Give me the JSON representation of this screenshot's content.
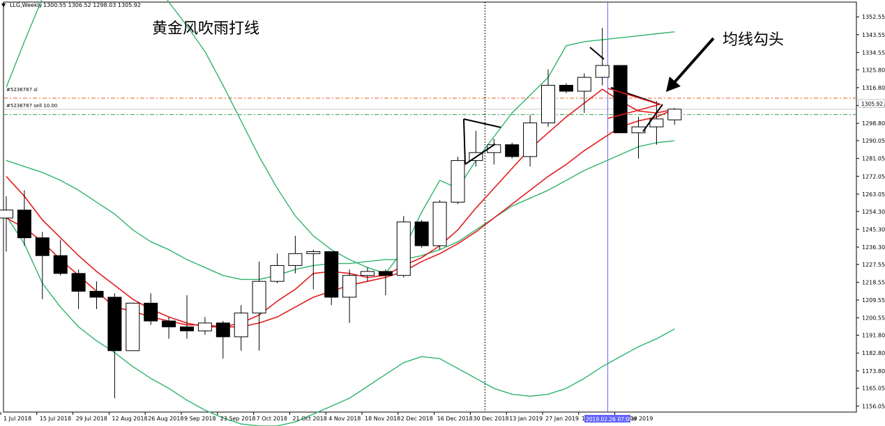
{
  "header": {
    "symbol_label": "LLG,Weekly",
    "ohlc_label": "1300.55 1306.52 1298.03 1305.92"
  },
  "annotations": {
    "title_cn": "黄金风吹雨打线",
    "arrow_label_cn": "均线勾头"
  },
  "orders": {
    "sl_label": "#5236787 sl",
    "sell_label": "#5236787 sell 10.00"
  },
  "price_scale": {
    "tick_labels": [
      "1352.55",
      "1343.55",
      "1334.55",
      "1325.80",
      "1316.80",
      "1307.80",
      "1298.80",
      "1290.05",
      "1281.05",
      "1272.05",
      "1263.05",
      "1254.30",
      "1245.30",
      "1236.30",
      "1227.55",
      "1218.55",
      "1209.55",
      "1200.55",
      "1191.80",
      "1182.80",
      "1173.80",
      "1165.05",
      "1156.05"
    ],
    "current_price_label": "1305.92"
  },
  "time_scale": {
    "labels": [
      "1 Jul 2018",
      "15 Jul 2018",
      "29 Jul 2018",
      "12 Aug 2018",
      "26 Aug 2018",
      "9 Sep 2018",
      "23 Sep 2018",
      "7 Oct 2018",
      "21 Oct 2018",
      "4 Nov 2018",
      "18 Nov 2018",
      "2 Dec 2018",
      "16 Dec 2018",
      "30 Dec 2018",
      "13 Jan 2019",
      "27 Jan 2019",
      "10 Fe",
      "10 Mar 2019"
    ],
    "crosshair_label": "2019.02.26 07:00",
    "crosshair_suffix": "19"
  },
  "colors": {
    "ma": "#e31b1b",
    "bollinger": "#2fb36a",
    "sl_line": "#e85a1a",
    "sell_line": "#2e9e3e",
    "crosshair": "#6464ff",
    "candle_bear": "#000000",
    "candle_bull": "#ffffff"
  },
  "chart_data": {
    "type": "candlestick",
    "timeframe": "Weekly",
    "ylim": [
      1153,
      1360
    ],
    "candles": [
      {
        "o": 1251.0,
        "h": 1262.0,
        "l": 1234.0,
        "c": 1255.0
      },
      {
        "o": 1255.0,
        "h": 1265.0,
        "l": 1237.0,
        "c": 1241.0
      },
      {
        "o": 1241.0,
        "h": 1244.0,
        "l": 1210.0,
        "c": 1232.0
      },
      {
        "o": 1232.0,
        "h": 1240.0,
        "l": 1222.0,
        "c": 1223.0
      },
      {
        "o": 1223.0,
        "h": 1225.0,
        "l": 1205.0,
        "c": 1214.0
      },
      {
        "o": 1214.0,
        "h": 1219.0,
        "l": 1205.0,
        "c": 1211.0
      },
      {
        "o": 1211.0,
        "h": 1213.0,
        "l": 1160.0,
        "c": 1184.0
      },
      {
        "o": 1184.0,
        "h": 1208.0,
        "l": 1184.0,
        "c": 1208.0
      },
      {
        "o": 1208.0,
        "h": 1213.0,
        "l": 1197.0,
        "c": 1199.0
      },
      {
        "o": 1199.0,
        "h": 1201.0,
        "l": 1190.0,
        "c": 1196.0
      },
      {
        "o": 1196.0,
        "h": 1212.0,
        "l": 1190.0,
        "c": 1194.0
      },
      {
        "o": 1194.0,
        "h": 1201.0,
        "l": 1192.0,
        "c": 1198.0
      },
      {
        "o": 1198.0,
        "h": 1199.0,
        "l": 1180.0,
        "c": 1191.0
      },
      {
        "o": 1191.0,
        "h": 1207.0,
        "l": 1184.0,
        "c": 1203.0
      },
      {
        "o": 1203.0,
        "h": 1229.0,
        "l": 1184.0,
        "c": 1219.0
      },
      {
        "o": 1219.0,
        "h": 1233.0,
        "l": 1218.0,
        "c": 1227.0
      },
      {
        "o": 1227.0,
        "h": 1242.0,
        "l": 1223.0,
        "c": 1233.0
      },
      {
        "o": 1233.0,
        "h": 1235.0,
        "l": 1215.0,
        "c": 1234.0
      },
      {
        "o": 1234.0,
        "h": 1234.0,
        "l": 1207.0,
        "c": 1211.0
      },
      {
        "o": 1211.0,
        "h": 1225.0,
        "l": 1198.0,
        "c": 1222.0
      },
      {
        "o": 1222.0,
        "h": 1226.0,
        "l": 1219.0,
        "c": 1224.0
      },
      {
        "o": 1224.0,
        "h": 1225.0,
        "l": 1212.0,
        "c": 1222.0
      },
      {
        "o": 1222.0,
        "h": 1252.0,
        "l": 1221.0,
        "c": 1249.0
      },
      {
        "o": 1249.0,
        "h": 1250.0,
        "l": 1236.0,
        "c": 1237.0
      },
      {
        "o": 1237.0,
        "h": 1260.0,
        "l": 1235.0,
        "c": 1259.0
      },
      {
        "o": 1259.0,
        "h": 1282.0,
        "l": 1258.0,
        "c": 1280.0
      },
      {
        "o": 1280.0,
        "h": 1295.0,
        "l": 1277.0,
        "c": 1284.0
      },
      {
        "o": 1284.0,
        "h": 1291.0,
        "l": 1278.0,
        "c": 1288.0
      },
      {
        "o": 1288.0,
        "h": 1289.0,
        "l": 1281.0,
        "c": 1282.0
      },
      {
        "o": 1282.0,
        "h": 1303.0,
        "l": 1277.0,
        "c": 1299.0
      },
      {
        "o": 1299.0,
        "h": 1326.0,
        "l": 1297.0,
        "c": 1318.0
      },
      {
        "o": 1318.0,
        "h": 1319.0,
        "l": 1314.0,
        "c": 1315.0
      },
      {
        "o": 1315.0,
        "h": 1324.0,
        "l": 1304.0,
        "c": 1322.0
      },
      {
        "o": 1322.0,
        "h": 1347.0,
        "l": 1318.0,
        "c": 1328.0
      },
      {
        "o": 1328.0,
        "h": 1328.0,
        "l": 1294.0,
        "c": 1294.0
      },
      {
        "o": 1294.0,
        "h": 1302.0,
        "l": 1281.0,
        "c": 1297.0
      },
      {
        "o": 1297.0,
        "h": 1310.0,
        "l": 1288.0,
        "c": 1301.0
      },
      {
        "o": 1300.55,
        "h": 1306.52,
        "l": 1298.03,
        "c": 1305.92
      }
    ],
    "ma_fast": [
      1251,
      1246,
      1239,
      1230,
      1222,
      1214,
      1206,
      1204,
      1201,
      1199,
      1197,
      1197,
      1196,
      1198,
      1202,
      1209,
      1215,
      1223,
      1224,
      1223,
      1221,
      1222,
      1227,
      1231,
      1237,
      1245,
      1256,
      1266,
      1276,
      1286,
      1294,
      1302,
      1309,
      1316,
      1310,
      1305,
      1304,
      1305.9
    ],
    "ma_slow": [
      1272,
      1262,
      1250,
      1241,
      1232,
      1224,
      1217,
      1210,
      1205,
      1201,
      1198,
      1196,
      1196,
      1196,
      1198,
      1201,
      1206,
      1211,
      1214,
      1217,
      1219,
      1221,
      1224,
      1229,
      1233,
      1238,
      1244,
      1251,
      1258,
      1265,
      1272,
      1278,
      1285,
      1291,
      1297,
      1300,
      1302,
      1305.9
    ],
    "bb_upper": [
      1317,
      1340,
      1362,
      1372,
      1380,
      1388,
      1393,
      1385,
      1373,
      1360,
      1348,
      1335,
      1318,
      1300,
      1282,
      1266,
      1252,
      1242,
      1235,
      1230,
      1226,
      1223,
      1235,
      1254,
      1270,
      1266,
      1280,
      1292,
      1304,
      1313,
      1322,
      1338,
      1340,
      1341,
      1342,
      1343,
      1344,
      1345
    ],
    "bb_middle": [
      1280,
      1277,
      1274,
      1270,
      1265,
      1259,
      1253,
      1245,
      1239,
      1235,
      1230,
      1226,
      1222,
      1220,
      1220,
      1222,
      1225,
      1227,
      1228,
      1228,
      1229,
      1230,
      1230,
      1232,
      1235,
      1239,
      1245,
      1251,
      1257,
      1261,
      1265,
      1270,
      1275,
      1279,
      1283,
      1287,
      1289,
      1290
    ],
    "bb_lower": [
      1252,
      1238,
      1218,
      1206,
      1196,
      1189,
      1183,
      1176,
      1170,
      1165,
      1159,
      1154,
      1150,
      1147,
      1146,
      1146,
      1148,
      1152,
      1156,
      1160,
      1166,
      1172,
      1178,
      1181,
      1180,
      1175,
      1170,
      1165,
      1162,
      1161,
      1162,
      1165,
      1170,
      1176,
      1181,
      1186,
      1190,
      1195
    ],
    "order_lines": {
      "sl": 1311.5,
      "sell": 1303.2
    },
    "current_price": 1305.92
  }
}
